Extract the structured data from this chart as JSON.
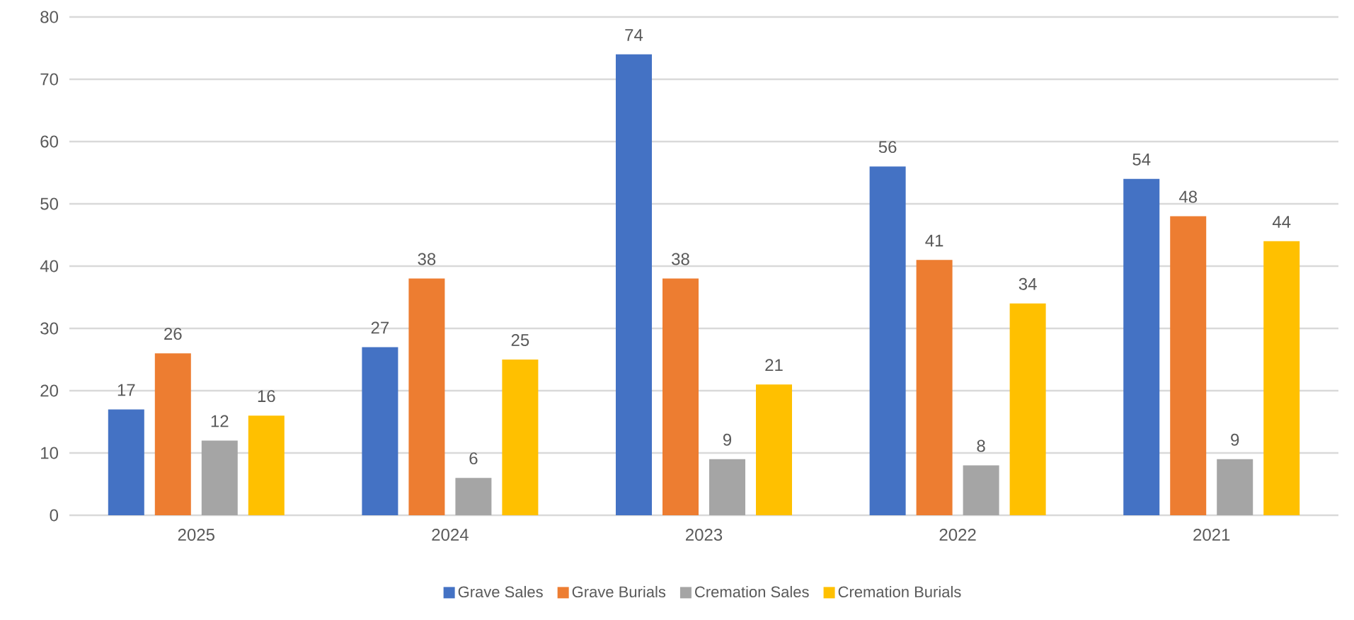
{
  "chart_data": {
    "type": "bar",
    "categories": [
      "2025",
      "2024",
      "2023",
      "2022",
      "2021"
    ],
    "series": [
      {
        "name": "Grave Sales",
        "color": "#4472c4",
        "values": [
          17,
          27,
          74,
          56,
          54
        ]
      },
      {
        "name": "Grave Burials",
        "color": "#ed7d31",
        "values": [
          26,
          38,
          38,
          41,
          48
        ]
      },
      {
        "name": "Cremation Sales",
        "color": "#a5a5a5",
        "values": [
          12,
          6,
          9,
          8,
          9
        ]
      },
      {
        "name": "Cremation Burials",
        "color": "#ffc000",
        "values": [
          16,
          25,
          21,
          34,
          44
        ]
      }
    ],
    "ylim": [
      0,
      80
    ],
    "yticks": [
      0,
      10,
      20,
      30,
      40,
      50,
      60,
      70,
      80
    ],
    "grid": "y",
    "legend": "bottom",
    "data_labels": true
  }
}
